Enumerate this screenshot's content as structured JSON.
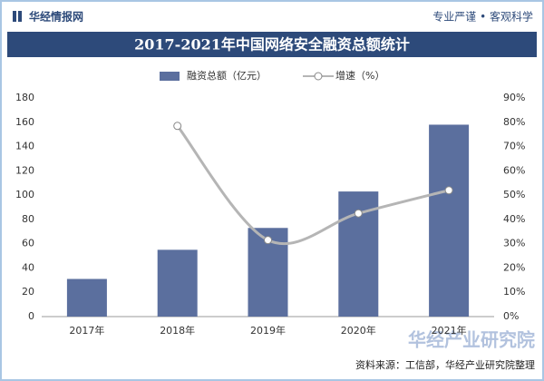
{
  "header": {
    "brand": "华经情报网",
    "slogan": "专业严谨 • 客观科学"
  },
  "chart_data": {
    "type": "bar",
    "title": "2017-2021年中国网络安全融资总额统计",
    "categories": [
      "2017年",
      "2018年",
      "2019年",
      "2020年",
      "2021年"
    ],
    "series": [
      {
        "name": "融资总额（亿元）",
        "type": "bar",
        "color": "#5b6f9e",
        "values": [
          31,
          55,
          73,
          103,
          158
        ]
      },
      {
        "name": "增速（%）",
        "type": "line",
        "color": "#b5b5b5",
        "axis": "y2",
        "values": [
          null,
          78.5,
          31.5,
          42.5,
          52
        ]
      }
    ],
    "ylim": [
      0,
      180
    ],
    "yticks": [
      0,
      20,
      40,
      60,
      80,
      100,
      120,
      140,
      160,
      180
    ],
    "y2lim": [
      0,
      90
    ],
    "y2ticks": [
      {
        "value": 0,
        "label": "0%"
      },
      {
        "value": 10,
        "label": "10%"
      },
      {
        "value": 20,
        "label": "20%"
      },
      {
        "value": 30,
        "label": "30%"
      },
      {
        "value": 40,
        "label": "40%"
      },
      {
        "value": 50,
        "label": "50%"
      },
      {
        "value": 60,
        "label": "60%"
      },
      {
        "value": 70,
        "label": "70%"
      },
      {
        "value": 80,
        "label": "80%"
      },
      {
        "value": 90,
        "label": "90%"
      }
    ],
    "grid": false,
    "legend": "top",
    "source": "资料来源：工信部，华经产业研究院整理",
    "watermark": "华经产业研究院"
  }
}
